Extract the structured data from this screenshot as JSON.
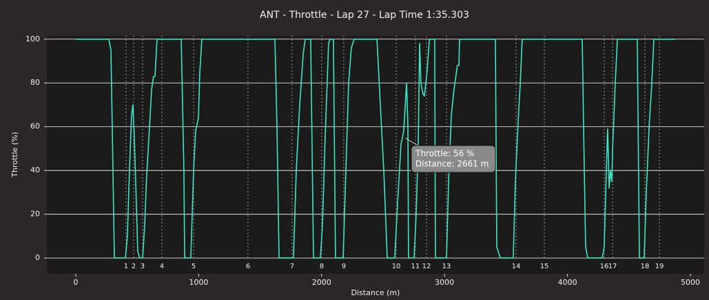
{
  "chart_data": {
    "type": "line",
    "title": "ANT - Throttle - Lap 27 - Lap Time 1:35.303",
    "x_label": "Distance (m)",
    "y_label": "Throttle (%)",
    "x": [
      0,
      269,
      286,
      297,
      314,
      404,
      420,
      437,
      454,
      465,
      476,
      493,
      504,
      521,
      544,
      561,
      577,
      600,
      617,
      633,
      645,
      661,
      858,
      880,
      886,
      936,
      959,
      975,
      998,
      1009,
      1026,
      1620,
      1637,
      1654,
      1771,
      1794,
      1822,
      1850,
      1866,
      1911,
      1934,
      1990,
      2007,
      2029,
      2057,
      2068,
      2096,
      2113,
      2175,
      2203,
      2220,
      2242,
      2265,
      2450,
      2478,
      2506,
      2534,
      2595,
      2618,
      2646,
      2668,
      2691,
      2702,
      2707,
      2752,
      2769,
      2786,
      2797,
      2808,
      2825,
      2836,
      2858,
      2876,
      2920,
      2926,
      3016,
      3033,
      3055,
      3077,
      3105,
      3117,
      3122,
      3414,
      3425,
      3453,
      3559,
      3576,
      3599,
      3616,
      3632,
      4120,
      4137,
      4148,
      4165,
      4283,
      4299,
      4316,
      4327,
      4339,
      4350,
      4361,
      4367,
      4389,
      4406,
      4568,
      4585,
      4624,
      4641,
      4664,
      4686,
      4703,
      4877
    ],
    "series": [
      {
        "color": "#3de8c6",
        "values": [
          100,
          100,
          95,
          60,
          0,
          0,
          10,
          40,
          65,
          70,
          55,
          25,
          3,
          0,
          0,
          15,
          38,
          60,
          77,
          83,
          83,
          100,
          100,
          40,
          0,
          0,
          40,
          58,
          64,
          85,
          100,
          100,
          60,
          0,
          0,
          40,
          70,
          93,
          100,
          100,
          0,
          0,
          15,
          55,
          98,
          100,
          100,
          0,
          0,
          50,
          80,
          96,
          100,
          100,
          70,
          40,
          0,
          0,
          25,
          52,
          58,
          80,
          60,
          0,
          0,
          20,
          52,
          98,
          80,
          75,
          74,
          85,
          100,
          100,
          0,
          0,
          35,
          65,
          77,
          88,
          88,
          100,
          100,
          5,
          0,
          0,
          35,
          63,
          80,
          100,
          100,
          40,
          5,
          0,
          0,
          5,
          40,
          59,
          32,
          40,
          35,
          50,
          80,
          100,
          100,
          0,
          0,
          30,
          60,
          80,
          100,
          100
        ]
      }
    ],
    "corners": {
      "labels": [
        "1",
        "2",
        "3",
        "4",
        "5",
        "6",
        "7",
        "8",
        "9",
        "10",
        "11",
        "12",
        "13",
        "14",
        "15",
        "16",
        "17",
        "18",
        "19"
      ],
      "x": [
        409,
        471,
        544,
        701,
        959,
        1401,
        1760,
        2001,
        2180,
        2607,
        2763,
        2853,
        3016,
        3582,
        3812,
        4299,
        4367,
        4630,
        4748
      ]
    },
    "annotations": [
      "Throttle: 56 %",
      "Distance: 2661 m"
    ],
    "xlim": [
      -235,
      5112
    ],
    "ylim": [
      -7.2,
      101.5
    ],
    "xticks": [
      0,
      1000,
      2000,
      3000,
      4000,
      5000
    ],
    "yticks": [
      0,
      20,
      40,
      60,
      80,
      100
    ],
    "grid": true
  }
}
